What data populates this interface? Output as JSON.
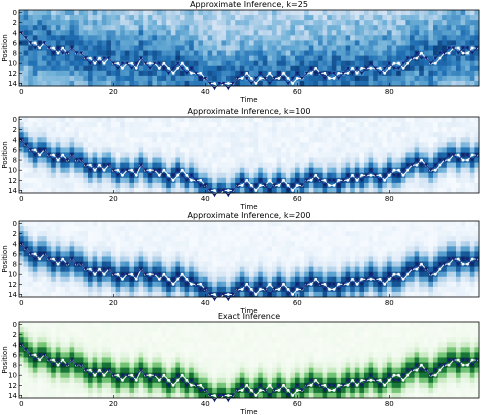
{
  "chart_data": [
    {
      "type": "heatmap",
      "title": "Approximate Inference, k=25",
      "xlabel": "Time",
      "ylabel": "Position",
      "xlim": [
        0,
        99
      ],
      "ylim": [
        15,
        0
      ],
      "x_ticks": [
        "0",
        "20",
        "40",
        "60",
        "80"
      ],
      "y_ticks": [
        "0",
        "2",
        "4",
        "6",
        "8",
        "10",
        "12",
        "14"
      ],
      "colormap": "blues",
      "width": 4.5,
      "noise": 0.45
    },
    {
      "type": "heatmap",
      "title": "Approximate Inference, k=100",
      "xlabel": "Time",
      "ylabel": "Position",
      "xlim": [
        0,
        99
      ],
      "ylim": [
        15,
        0
      ],
      "x_ticks": [
        "0",
        "20",
        "40",
        "60",
        "80"
      ],
      "y_ticks": [
        "0",
        "2",
        "4",
        "6",
        "8",
        "10",
        "12",
        "14"
      ],
      "colormap": "blues",
      "width": 1.6,
      "noise": 0.12
    },
    {
      "type": "heatmap",
      "title": "Approximate Inference, k=200",
      "xlabel": "Time",
      "ylabel": "Position",
      "xlim": [
        0,
        99
      ],
      "ylim": [
        15,
        0
      ],
      "x_ticks": [
        "0",
        "20",
        "40",
        "60",
        "80"
      ],
      "y_ticks": [
        "0",
        "2",
        "4",
        "6",
        "8",
        "10",
        "12",
        "14"
      ],
      "colormap": "blues",
      "width": 1.9,
      "noise": 0.08
    },
    {
      "type": "heatmap",
      "title": "Exact Inference",
      "xlabel": "Time",
      "ylabel": "Position",
      "xlim": [
        0,
        99
      ],
      "ylim": [
        15,
        0
      ],
      "x_ticks": [
        "0",
        "20",
        "40",
        "60",
        "80"
      ],
      "y_ticks": [
        "0",
        "2",
        "4",
        "6",
        "8",
        "10",
        "12",
        "14"
      ],
      "colormap": "greens",
      "width": 1.7,
      "noise": 0.04
    }
  ],
  "trajectory": {
    "time": [
      0,
      1,
      2,
      3,
      4,
      5,
      6,
      7,
      8,
      9,
      10,
      11,
      12,
      13,
      14,
      15,
      16,
      17,
      18,
      19,
      20,
      21,
      22,
      23,
      24,
      25,
      26,
      27,
      28,
      29,
      30,
      31,
      32,
      33,
      34,
      35,
      36,
      37,
      38,
      39,
      40,
      41,
      42,
      43,
      44,
      45,
      46,
      47,
      48,
      49,
      50,
      51,
      52,
      53,
      54,
      55,
      56,
      57,
      58,
      59,
      60,
      61,
      62,
      63,
      64,
      65,
      66,
      67,
      68,
      69,
      70,
      71,
      72,
      73,
      74,
      75,
      76,
      77,
      78,
      79,
      80,
      81,
      82,
      83,
      84,
      85,
      86,
      87,
      88,
      89,
      90,
      91,
      92,
      93,
      94,
      95,
      96,
      97,
      98,
      99
    ],
    "true_position": [
      4,
      5,
      6,
      7,
      6,
      6,
      7,
      8,
      7,
      8,
      8,
      7,
      8,
      8,
      9,
      10,
      9,
      10,
      9,
      9,
      10,
      11,
      10,
      10,
      11,
      10,
      9,
      10,
      11,
      10,
      10,
      11,
      12,
      11,
      10,
      11,
      12,
      11,
      12,
      13,
      13,
      14,
      15,
      14,
      14,
      15,
      14,
      13,
      12,
      13,
      14,
      13,
      12,
      13,
      14,
      13,
      12,
      13,
      14,
      13,
      12,
      13,
      12,
      11,
      12,
      12,
      13,
      12,
      12,
      13,
      12,
      11,
      12,
      11,
      12,
      11,
      10,
      11,
      12,
      11,
      10,
      11,
      11,
      10,
      9,
      9,
      8,
      9,
      9,
      10,
      9,
      8,
      8,
      7,
      7,
      8,
      7,
      7,
      8,
      7
    ],
    "observed_position": [
      4,
      5,
      6,
      6,
      7,
      6,
      7,
      7,
      8,
      7,
      8,
      7,
      8,
      8,
      9,
      9,
      10,
      9,
      10,
      9,
      10,
      10,
      11,
      10,
      10,
      11,
      9,
      10,
      10,
      10,
      11,
      10,
      11,
      12,
      11,
      10,
      11,
      12,
      12,
      12,
      13,
      14,
      14,
      15,
      14,
      14,
      14,
      13,
      13,
      12,
      13,
      14,
      13,
      13,
      12,
      13,
      13,
      12,
      13,
      14,
      13,
      13,
      12,
      12,
      11,
      12,
      12,
      13,
      13,
      12,
      12,
      12,
      11,
      12,
      11,
      11,
      11,
      11,
      11,
      12,
      11,
      10,
      10,
      11,
      10,
      9,
      9,
      8,
      9,
      10,
      10,
      9,
      8,
      8,
      7,
      7,
      8,
      8,
      7,
      7
    ]
  }
}
